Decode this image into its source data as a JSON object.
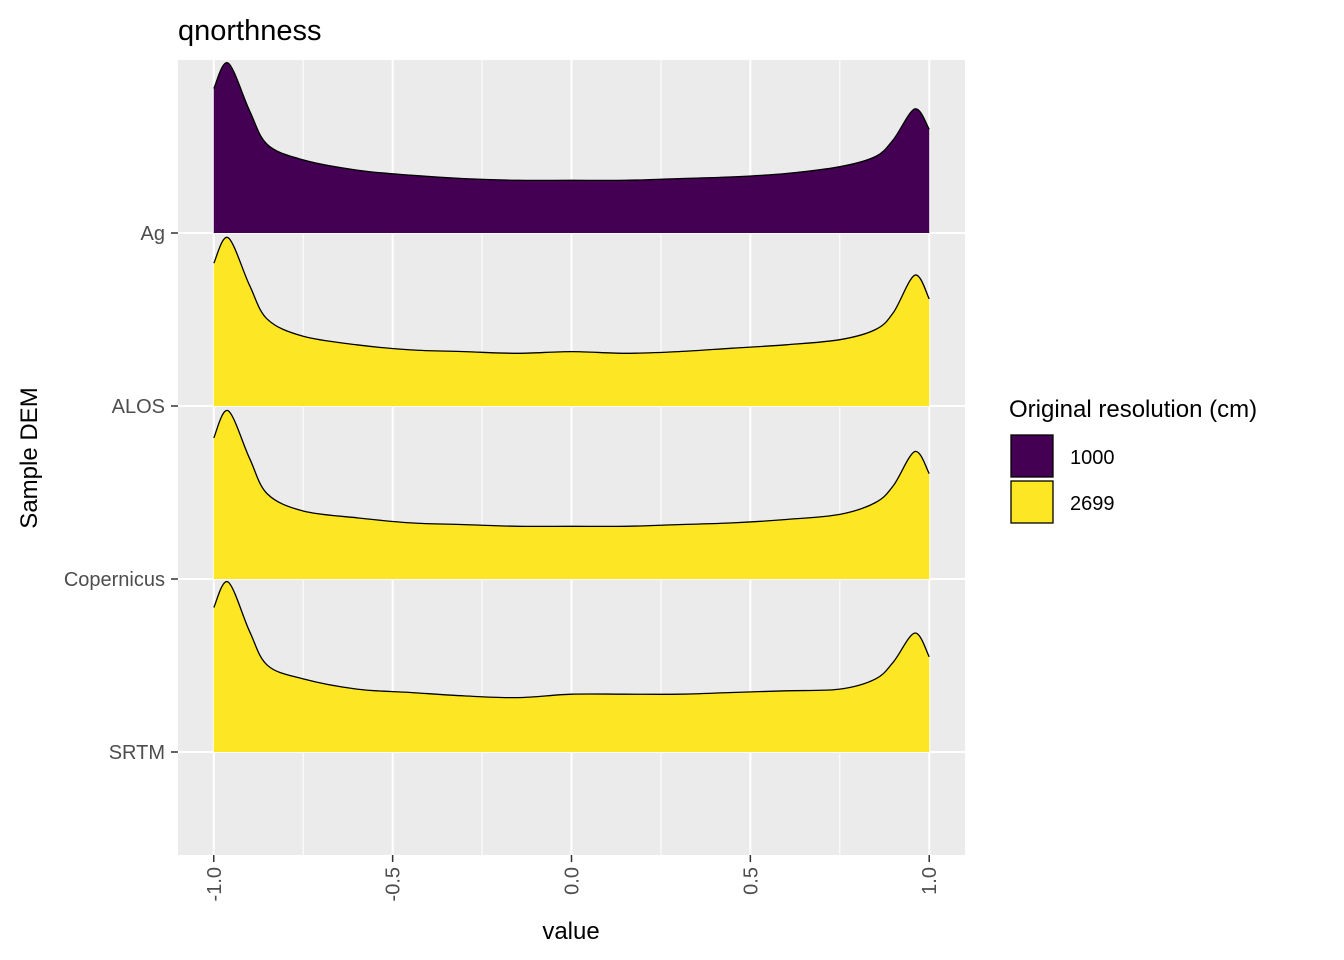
{
  "chart_data": {
    "type": "ridgeline",
    "title": "qnorthness",
    "xlabel": "value",
    "ylabel": "Sample DEM",
    "xlim": [
      -1.1,
      1.1
    ],
    "x_ticks": [
      -1.0,
      -0.5,
      0.0,
      0.5,
      1.0
    ],
    "x_tick_labels": [
      "-1.0",
      "-0.5",
      "0.0",
      "0.5",
      "1.0"
    ],
    "grid": true,
    "legend": {
      "title": "Original resolution (cm)",
      "position": "right",
      "items": [
        {
          "label": "1000",
          "color": "#440154"
        },
        {
          "label": "2699",
          "color": "#FDE725"
        }
      ]
    },
    "categories": [
      "Ag",
      "ALOS",
      "Copernicus",
      "SRTM"
    ],
    "x": [
      -1.0,
      -0.96,
      -0.9,
      -0.85,
      -0.75,
      -0.6,
      -0.45,
      -0.3,
      -0.15,
      0.0,
      0.15,
      0.3,
      0.45,
      0.6,
      0.75,
      0.85,
      0.9,
      0.96,
      1.0
    ],
    "series": [
      {
        "name": "Ag",
        "resolution": "1000",
        "color": "#440154",
        "density": [
          0.85,
          1.0,
          0.72,
          0.52,
          0.43,
          0.37,
          0.34,
          0.32,
          0.31,
          0.31,
          0.31,
          0.32,
          0.33,
          0.35,
          0.39,
          0.45,
          0.55,
          0.73,
          0.61
        ]
      },
      {
        "name": "ALOS",
        "resolution": "2699",
        "color": "#FDE725",
        "density": [
          0.84,
          0.99,
          0.71,
          0.51,
          0.41,
          0.36,
          0.33,
          0.32,
          0.31,
          0.32,
          0.31,
          0.32,
          0.34,
          0.36,
          0.39,
          0.45,
          0.55,
          0.77,
          0.63
        ]
      },
      {
        "name": "Copernicus",
        "resolution": "2699",
        "color": "#FDE725",
        "density": [
          0.83,
          0.99,
          0.71,
          0.5,
          0.4,
          0.36,
          0.33,
          0.32,
          0.31,
          0.31,
          0.31,
          0.32,
          0.33,
          0.35,
          0.38,
          0.45,
          0.55,
          0.75,
          0.62
        ]
      },
      {
        "name": "SRTM",
        "resolution": "2699",
        "color": "#FDE725",
        "density": [
          0.85,
          1.0,
          0.71,
          0.51,
          0.43,
          0.37,
          0.35,
          0.33,
          0.32,
          0.34,
          0.34,
          0.34,
          0.35,
          0.36,
          0.37,
          0.43,
          0.53,
          0.7,
          0.56
        ]
      }
    ]
  }
}
